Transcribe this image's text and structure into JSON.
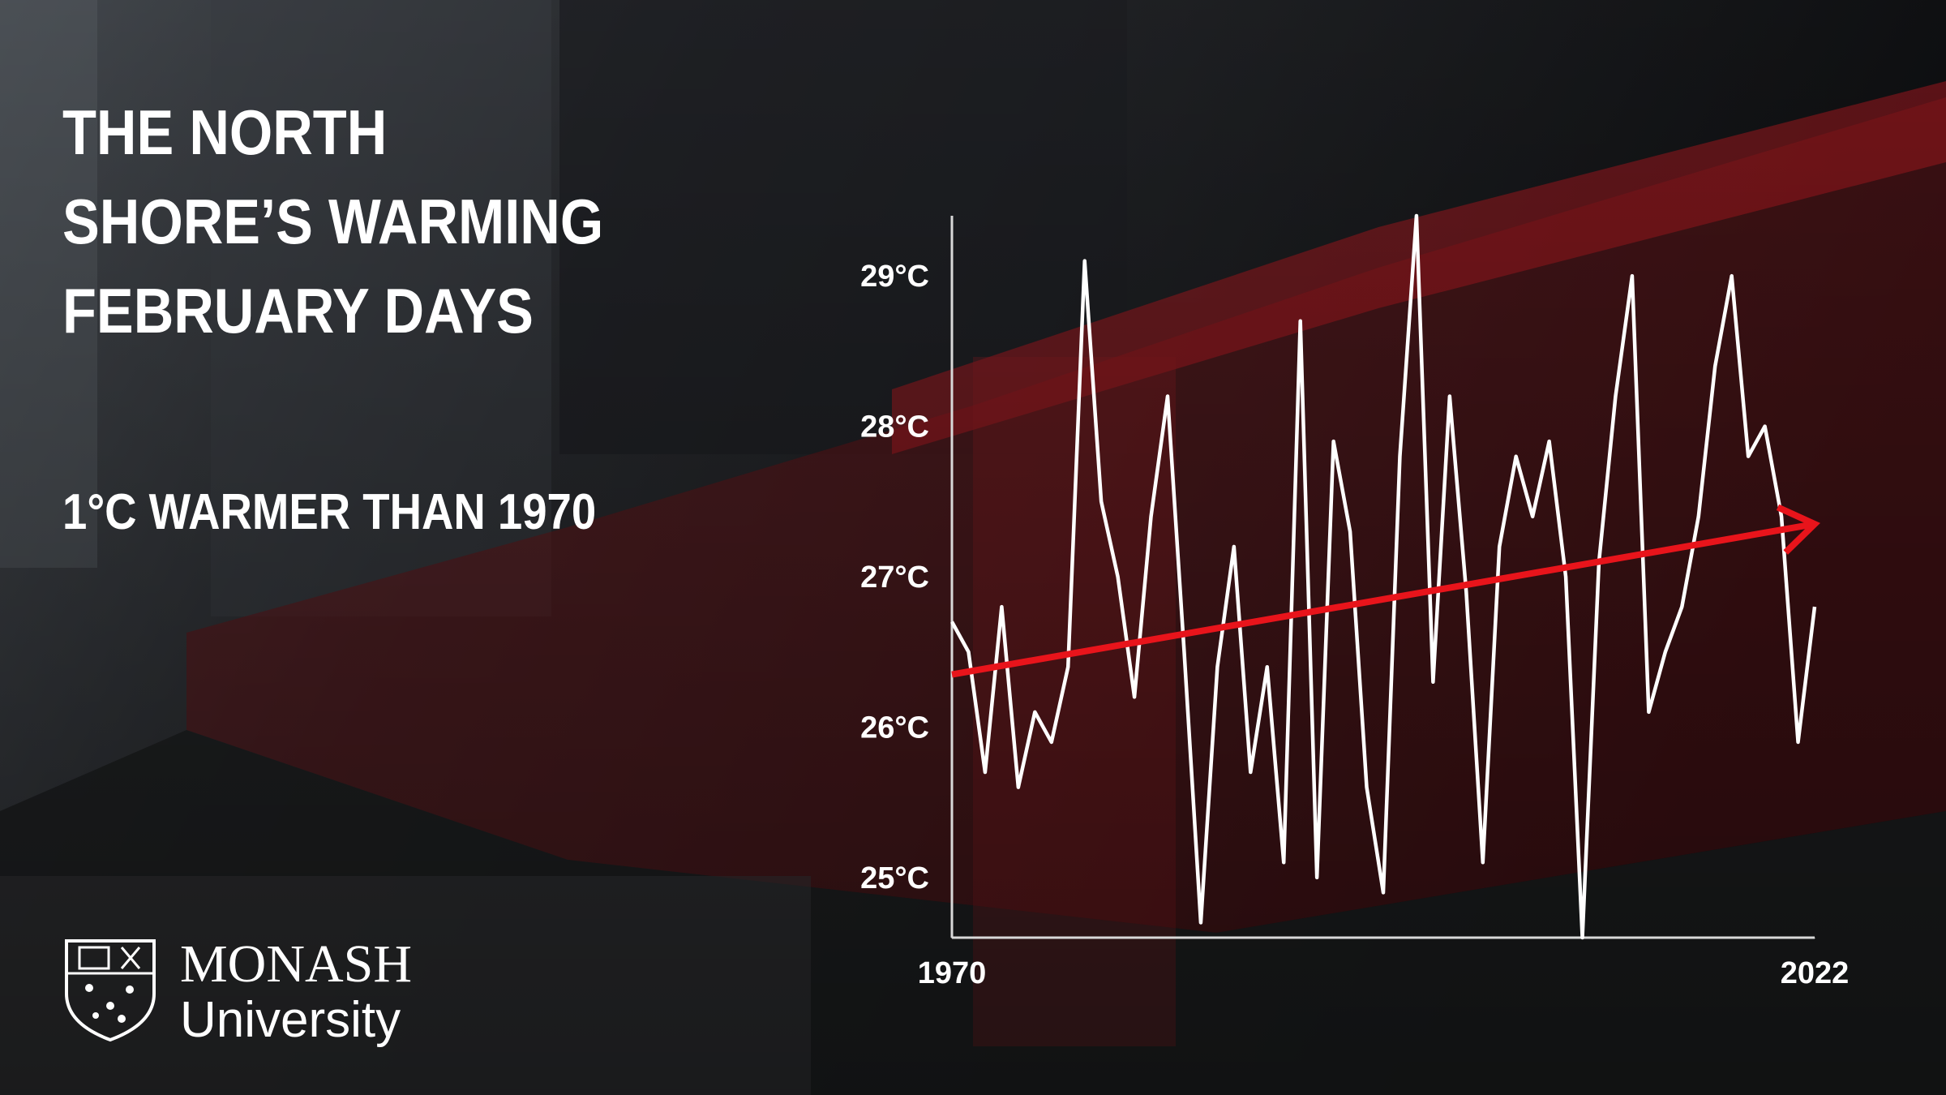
{
  "chart_data": {
    "type": "line",
    "title": [
      "THE NORTH",
      "SHORE’S WARMING",
      "FEBRUARY DAYS"
    ],
    "subtitle": "1°C WARMER THAN 1970",
    "x": [
      1970,
      1971,
      1972,
      1973,
      1974,
      1975,
      1976,
      1977,
      1978,
      1979,
      1980,
      1981,
      1982,
      1983,
      1984,
      1985,
      1986,
      1987,
      1988,
      1989,
      1990,
      1991,
      1992,
      1993,
      1994,
      1995,
      1996,
      1997,
      1998,
      1999,
      2000,
      2001,
      2002,
      2003,
      2004,
      2005,
      2006,
      2007,
      2008,
      2009,
      2010,
      2011,
      2012,
      2013,
      2014,
      2015,
      2016,
      2017,
      2018,
      2019,
      2020,
      2021,
      2022
    ],
    "series": [
      {
        "color": "#ffffff",
        "values": [
          26.7,
          26.5,
          25.7,
          26.8,
          25.6,
          26.1,
          25.9,
          26.4,
          29.1,
          27.5,
          27.0,
          26.2,
          27.4,
          28.2,
          26.5,
          24.7,
          26.4,
          27.2,
          25.7,
          26.4,
          25.1,
          28.7,
          25.0,
          27.9,
          27.3,
          25.6,
          24.9,
          27.8,
          29.4,
          26.3,
          28.2,
          26.9,
          25.1,
          27.2,
          27.8,
          27.4,
          27.9,
          27.0,
          24.6,
          27.1,
          28.2,
          29.0,
          26.1,
          26.5,
          26.8,
          27.4,
          28.4,
          29.0,
          27.8,
          28.0,
          27.4,
          25.9,
          26.8
        ]
      }
    ],
    "trend": {
      "color": "#e8141b",
      "values": [
        26.35,
        27.35
      ]
    },
    "xlim": [
      1970,
      2022
    ],
    "xticks": [
      1970,
      2022
    ],
    "ylim": [
      24.6,
      29.4
    ],
    "yticks": [
      {
        "value": 25,
        "label": "25°C"
      },
      {
        "value": 26,
        "label": "26°C"
      },
      {
        "value": 27,
        "label": "27°C"
      },
      {
        "value": 28,
        "label": "28°C"
      },
      {
        "value": 29,
        "label": "29°C"
      }
    ]
  },
  "logo": {
    "name": "MONASH",
    "subname": "University"
  }
}
